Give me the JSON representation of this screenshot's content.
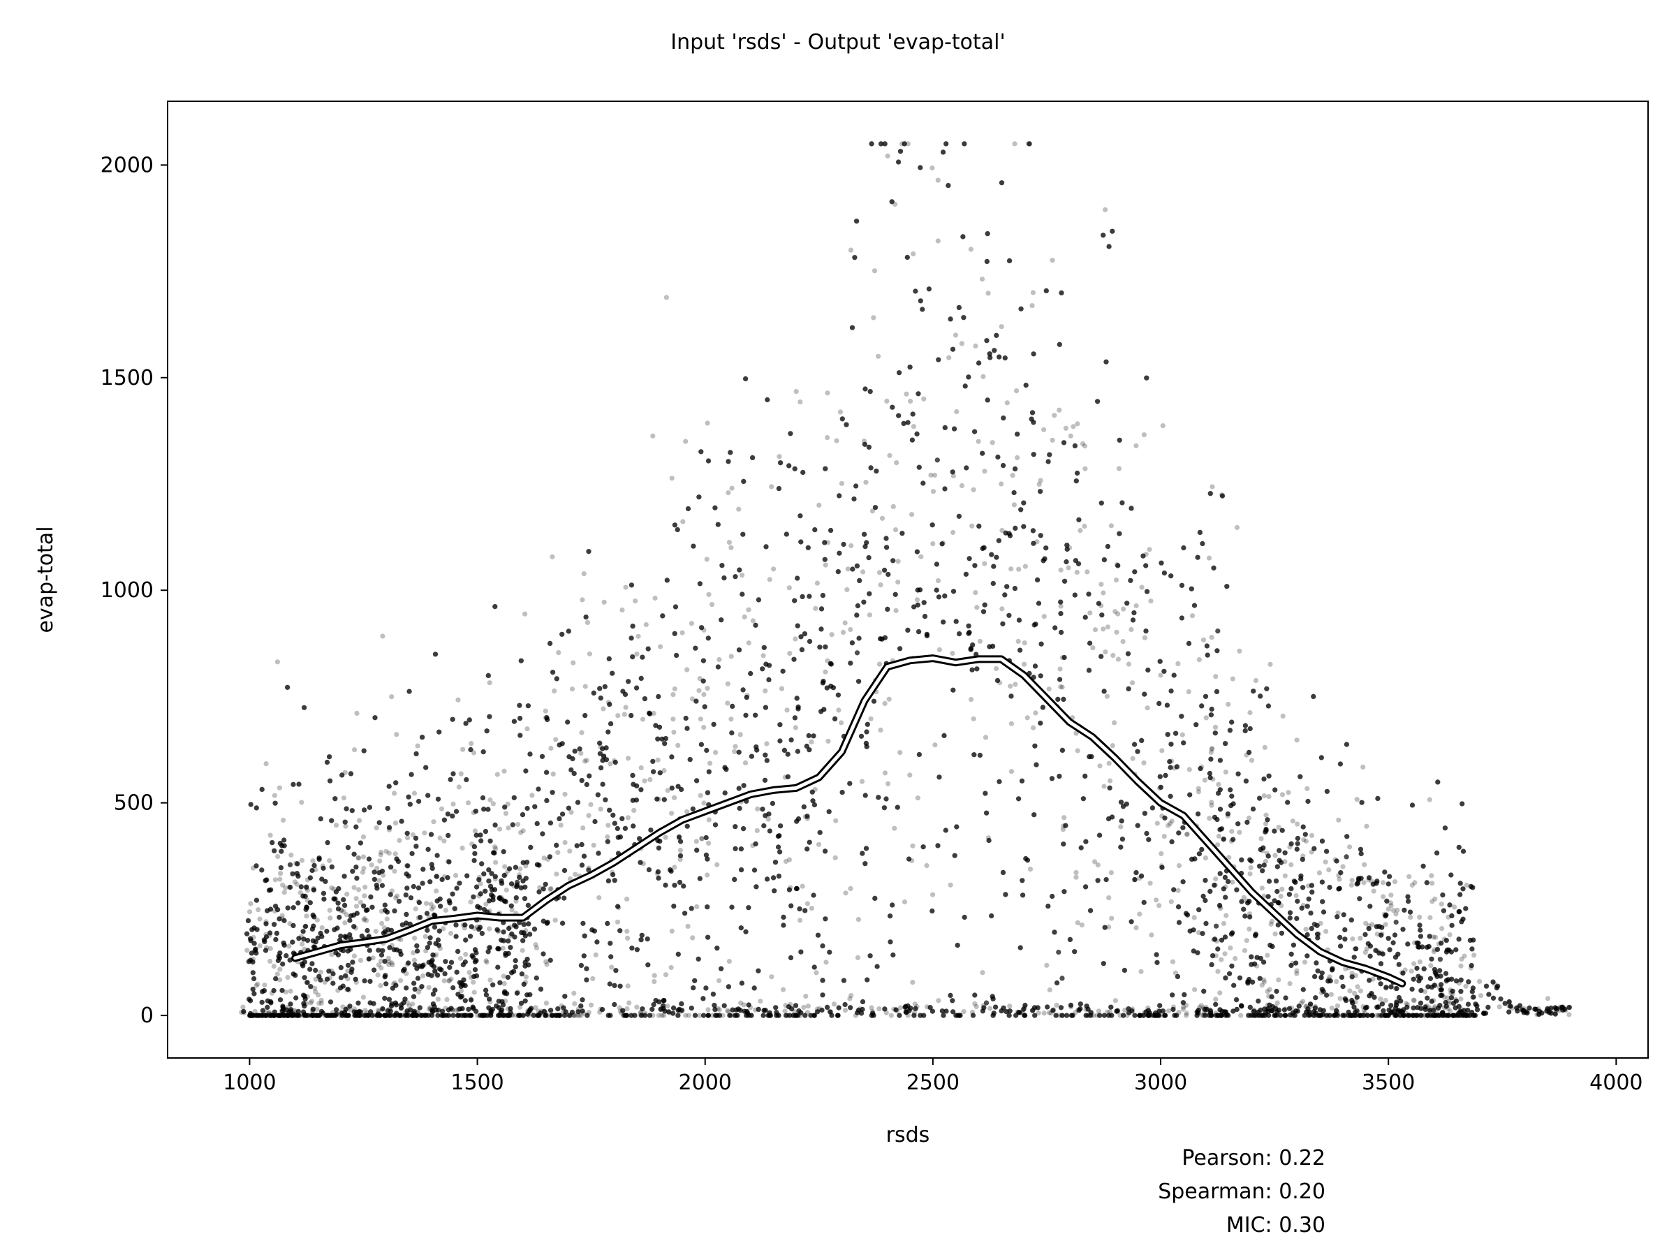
{
  "chart_data": {
    "type": "scatter",
    "title": "Input 'rsds' - Output 'evap-total'",
    "xlabel": "rsds",
    "ylabel": "evap-total",
    "xlim": [
      820,
      4070
    ],
    "ylim": [
      -100,
      2150
    ],
    "xticks": [
      1000,
      1500,
      2000,
      2500,
      3000,
      3500,
      4000
    ],
    "yticks": [
      0,
      500,
      1000,
      1500,
      2000
    ],
    "grid": false,
    "legend": "none",
    "point_color": "#000000",
    "point_opacity": 0.25,
    "trend_line": {
      "x": [
        1100,
        1150,
        1200,
        1250,
        1300,
        1350,
        1400,
        1450,
        1500,
        1550,
        1600,
        1650,
        1700,
        1750,
        1800,
        1850,
        1900,
        1950,
        2000,
        2050,
        2100,
        2150,
        2200,
        2250,
        2300,
        2350,
        2400,
        2450,
        2500,
        2550,
        2600,
        2650,
        2700,
        2750,
        2800,
        2850,
        2900,
        2950,
        3000,
        3050,
        3100,
        3150,
        3200,
        3250,
        3300,
        3350,
        3400,
        3450,
        3500,
        3530
      ],
      "y": [
        135,
        150,
        165,
        172,
        180,
        200,
        222,
        228,
        235,
        230,
        230,
        270,
        305,
        330,
        360,
        395,
        430,
        460,
        480,
        500,
        520,
        530,
        535,
        560,
        620,
        740,
        820,
        835,
        840,
        830,
        838,
        838,
        800,
        745,
        690,
        655,
        605,
        550,
        500,
        470,
        410,
        350,
        290,
        240,
        190,
        150,
        125,
        110,
        90,
        75
      ]
    },
    "sample_points": {
      "x": [
        1180,
        1250,
        1320,
        1400,
        1480,
        1560,
        1650,
        1740,
        1850,
        1950,
        2050,
        2150,
        2250,
        2320,
        2380,
        2420,
        2480,
        2550,
        2600,
        2650,
        2720,
        2800,
        2900,
        3000,
        3100,
        3200,
        3300,
        3400,
        3500,
        3600,
        3700,
        3850
      ],
      "y": [
        300,
        420,
        380,
        250,
        500,
        350,
        700,
        600,
        850,
        900,
        780,
        1050,
        1200,
        1800,
        1550,
        1300,
        1450,
        1600,
        1350,
        1250,
        1700,
        1100,
        950,
        800,
        700,
        600,
        450,
        350,
        250,
        150,
        80,
        40
      ]
    }
  },
  "stats": {
    "pearson": "Pearson: 0.22",
    "spearman": "Spearman: 0.20",
    "mic": "MIC: 0.30"
  }
}
